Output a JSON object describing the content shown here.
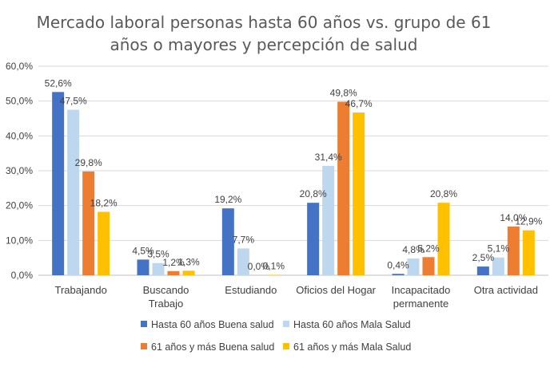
{
  "chart_data": {
    "type": "bar",
    "title": "Mercado laboral personas hasta 60 años vs. grupo de 61 años o mayores y percepción de salud",
    "title_lines": [
      "Mercado laboral personas hasta 60 años vs. grupo de 61",
      "años o mayores y percepción de salud"
    ],
    "categories": [
      [
        "Trabajando"
      ],
      [
        "Buscando",
        "Trabajo"
      ],
      [
        "Estudiando"
      ],
      [
        "Oficios del Hogar"
      ],
      [
        "Incapacitado",
        "permanente"
      ],
      [
        "Otra actividad"
      ]
    ],
    "ylim": [
      0,
      60
    ],
    "yticks": [
      0,
      10,
      20,
      30,
      40,
      50,
      60
    ],
    "ytick_labels": [
      "0,0%",
      "10,0%",
      "20,0%",
      "30,0%",
      "40,0%",
      "50,0%",
      "60,0%"
    ],
    "grid": true,
    "legend_position": "bottom",
    "series": [
      {
        "name": "Hasta 60 años Buena salud",
        "color": "#4472C4",
        "values": [
          52.6,
          4.5,
          19.2,
          20.8,
          0.4,
          2.5
        ],
        "labels": [
          "52,6%",
          "4,5%",
          "19,2%",
          "20,8%",
          "0,4%",
          "2,5%"
        ]
      },
      {
        "name": "Hasta 60 años Mala Salud",
        "color": "#BDD7EE",
        "values": [
          47.5,
          3.5,
          7.7,
          31.4,
          4.8,
          5.1
        ],
        "labels": [
          "47,5%",
          "3,5%",
          "7,7%",
          "31,4%",
          "4,8%",
          "5,1%"
        ]
      },
      {
        "name": "61 años y más  Buena salud",
        "color": "#ED7D31",
        "values": [
          29.8,
          1.2,
          0.0,
          49.8,
          5.2,
          14.0
        ],
        "labels": [
          "29,8%",
          "1,2%",
          "0,0%",
          "49,8%",
          "5,2%",
          "14,0%"
        ]
      },
      {
        "name": "61 años y más  Mala Salud",
        "color": "#FFC000",
        "values": [
          18.2,
          1.3,
          0.1,
          46.7,
          20.8,
          12.9
        ],
        "labels": [
          "18,2%",
          "1,3%",
          "0,1%",
          "46,7%",
          "20,8%",
          "12,9%"
        ]
      }
    ]
  }
}
